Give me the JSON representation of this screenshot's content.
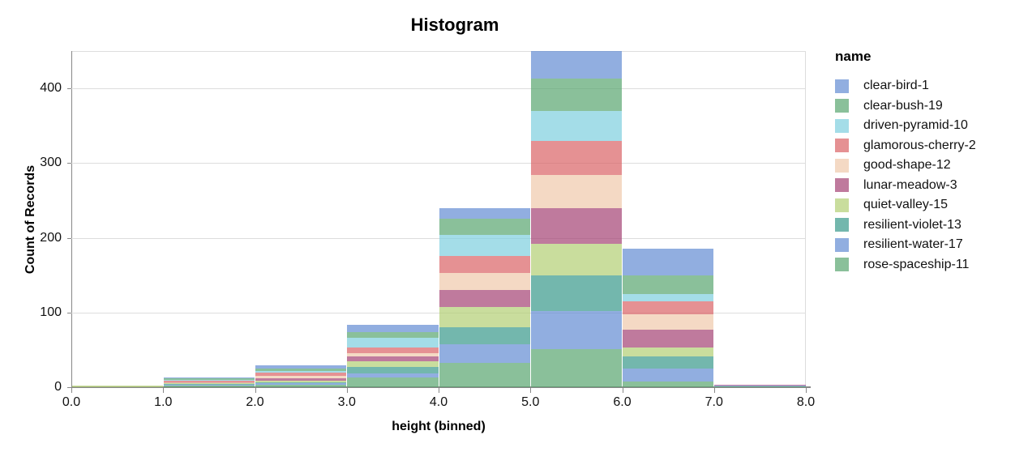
{
  "page": {
    "background": "#ffffff"
  },
  "chart_data": {
    "type": "bar",
    "variant": "stacked-histogram",
    "title": "Histogram",
    "xlabel": "height (binned)",
    "ylabel": "Count of Records",
    "legend_title": "name",
    "legend_position": "right",
    "grid": true,
    "x_tick_labels": [
      "0.0",
      "1.0",
      "2.0",
      "3.0",
      "4.0",
      "5.0",
      "6.0",
      "7.0",
      "8.0"
    ],
    "y_tick_values": [
      0,
      100,
      200,
      300,
      400
    ],
    "xlim": [
      0,
      8
    ],
    "ylim": [
      0,
      450
    ],
    "bin_edges": [
      0,
      1,
      2,
      3,
      4,
      5,
      6,
      7,
      8
    ],
    "categories": [
      "0-1",
      "1-2",
      "2-3",
      "3-4",
      "4-5",
      "5-6",
      "6-7",
      "7-8"
    ],
    "stack_order": "first-series-on-top",
    "mark_opacity": 0.7,
    "series": [
      {
        "name": "clear-bird-1",
        "color": "#638bd3",
        "values": [
          0,
          1,
          4,
          9,
          14,
          37,
          35,
          0
        ]
      },
      {
        "name": "clear-bush-19",
        "color": "#58a56f",
        "values": [
          0,
          2,
          3,
          8,
          22,
          43,
          25,
          0
        ]
      },
      {
        "name": "driven-pyramid-10",
        "color": "#7dcede",
        "values": [
          0,
          1,
          3,
          13,
          28,
          40,
          10,
          0
        ]
      },
      {
        "name": "glamorous-cherry-2",
        "color": "#da6265",
        "values": [
          0,
          2,
          4,
          7,
          23,
          46,
          17,
          0
        ]
      },
      {
        "name": "good-shape-12",
        "color": "#efc9ab",
        "values": [
          0,
          1,
          3,
          5,
          23,
          44,
          21,
          0
        ]
      },
      {
        "name": "lunar-meadow-3",
        "color": "#a44274",
        "values": [
          0,
          1,
          3,
          6,
          23,
          48,
          24,
          1
        ]
      },
      {
        "name": "quiet-valley-15",
        "color": "#b2ce73",
        "values": [
          2,
          1,
          2,
          8,
          27,
          42,
          12,
          0
        ]
      },
      {
        "name": "resilient-violet-13",
        "color": "#38988a",
        "values": [
          0,
          1,
          2,
          9,
          22,
          48,
          16,
          0
        ]
      },
      {
        "name": "resilient-water-17",
        "color": "#638bd3",
        "values": [
          0,
          1,
          2,
          5,
          26,
          51,
          17,
          1
        ]
      },
      {
        "name": "rose-spaceship-11",
        "color": "#58a56f",
        "values": [
          0,
          2,
          3,
          13,
          32,
          51,
          8,
          1
        ]
      }
    ],
    "bin_totals": [
      2,
      13,
      29,
      83,
      240,
      450,
      185,
      3
    ],
    "colors": {
      "grid": "#dddddd",
      "axis": "#888888",
      "text": "#000000"
    }
  }
}
